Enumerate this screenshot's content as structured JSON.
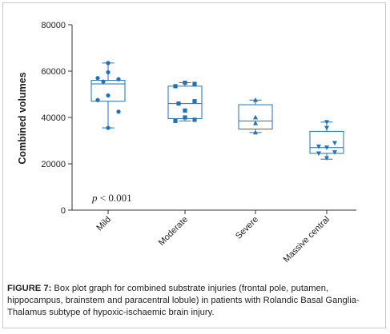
{
  "chart_data": {
    "type": "box",
    "title": "",
    "xlabel": "",
    "ylabel": "Combined volumes",
    "ylim": [
      0,
      80000
    ],
    "yticks": [
      0,
      20000,
      40000,
      60000,
      80000
    ],
    "ytick_labels": [
      "0",
      "20000",
      "40000",
      "60000",
      "80000"
    ],
    "color": "#1f72b8",
    "annotation": "p < 0.001",
    "categories": [
      "Mild",
      "Moderate",
      "Severe",
      "Massive central"
    ],
    "series": [
      {
        "marker": "circle",
        "min": 35500,
        "q1": 47000,
        "median": 54500,
        "q3": 56000,
        "max": 63500,
        "points": [
          63500,
          59500,
          57000,
          56500,
          55500,
          49500,
          47500,
          42500,
          35500
        ]
      },
      {
        "marker": "square",
        "min": 38500,
        "q1": 39500,
        "median": 46000,
        "q3": 53500,
        "max": 55000,
        "points": [
          55000,
          54500,
          53500,
          47000,
          46000,
          43000,
          40000,
          39000,
          38500
        ]
      },
      {
        "marker": "triangle-up",
        "min": 33500,
        "q1": 35000,
        "median": 38500,
        "q3": 45500,
        "max": 47500,
        "points": [
          47500,
          40000,
          37500,
          33500
        ]
      },
      {
        "marker": "triangle-down",
        "min": 22000,
        "q1": 24500,
        "median": 27000,
        "q3": 34000,
        "max": 38000,
        "points": [
          38000,
          35500,
          29000,
          27500,
          27000,
          25000,
          24500,
          22500
        ]
      }
    ]
  },
  "caption": {
    "label": "FIGURE 7:",
    "text": " Box plot graph for combined substrate injuries (frontal pole, putamen, hippocampus, brainstem and paracentral lobule) in patients with Rolandic Basal Ganglia-Thalamus subtype of hypoxic-ischaemic brain injury."
  }
}
